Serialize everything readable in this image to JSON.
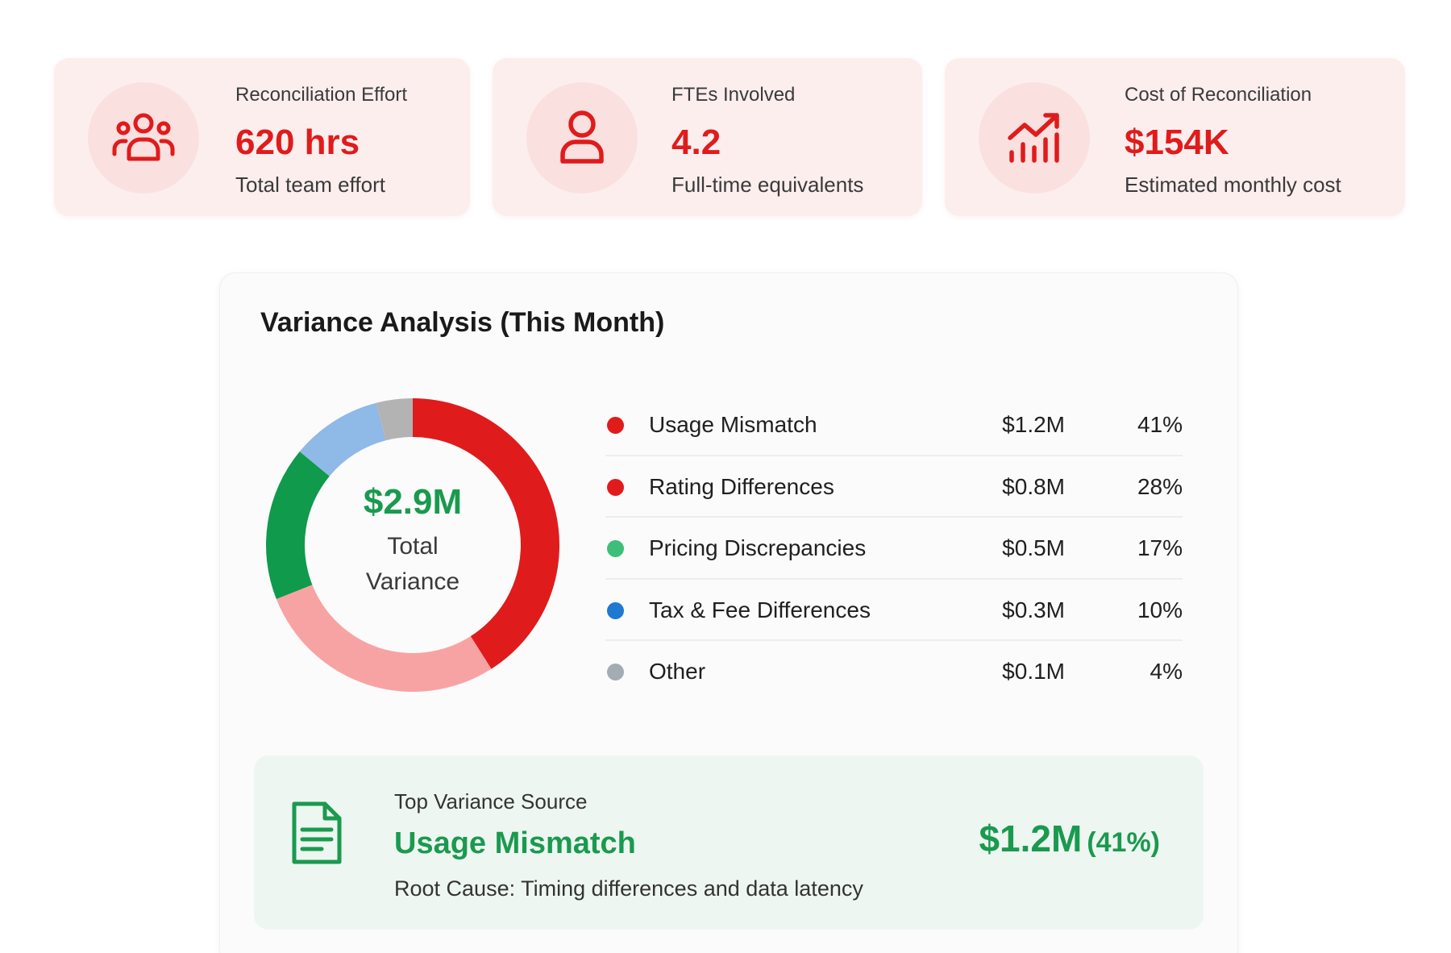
{
  "kpis": [
    {
      "label": "Reconciliation Effort",
      "value": "620 hrs",
      "sub": "Total team effort",
      "icon": "users-icon"
    },
    {
      "label": "FTEs Involved",
      "value": "4.2",
      "sub": "Full-time equivalents",
      "icon": "user-icon"
    },
    {
      "label": "Cost of Reconciliation",
      "value": "$154K",
      "sub": "Estimated monthly cost",
      "icon": "chart-trend-icon"
    }
  ],
  "colors": {
    "accent_red": "#e01b1b",
    "accent_green": "#1a9a4f",
    "card_bg": "#fdeeee",
    "source_bg": "#eef6f1"
  },
  "variance": {
    "title": "Variance Analysis (This Month)",
    "total_value": "$2.9M",
    "total_label": "Total Variance",
    "items": [
      {
        "name": "Usage Mismatch",
        "amount": "$1.2M",
        "pct": "41%",
        "dot_color": "#e01b1b"
      },
      {
        "name": "Rating Differences",
        "amount": "$0.8M",
        "pct": "28%",
        "dot_color": "#e01b1b"
      },
      {
        "name": "Pricing Discrepancies",
        "amount": "$0.5M",
        "pct": "17%",
        "dot_color": "#3dbf7a"
      },
      {
        "name": "Tax & Fee Differences",
        "amount": "$0.3M",
        "pct": "10%",
        "dot_color": "#1f78d1"
      },
      {
        "name": "Other",
        "amount": "$0.1M",
        "pct": "4%",
        "dot_color": "#a3abb3"
      }
    ]
  },
  "chart_data": {
    "type": "pie",
    "donut": true,
    "categories": [
      "Usage Mismatch",
      "Rating Differences",
      "Pricing Discrepancies",
      "Tax & Fee Differences",
      "Other"
    ],
    "values": [
      41,
      28,
      17,
      10,
      4
    ],
    "amounts": [
      "$1.2M",
      "$0.8M",
      "$0.5M",
      "$0.3M",
      "$0.1M"
    ],
    "slice_colors": [
      "#e01b1b",
      "#f8a3a3",
      "#0f9a4c",
      "#8fb9e6",
      "#b3b3b3"
    ],
    "center_value": "$2.9M",
    "center_label": "Total Variance",
    "title": "Variance Analysis (This Month)"
  },
  "top_source": {
    "label": "Top Variance Source",
    "name": "Usage Mismatch",
    "cause": "Root Cause: Timing differences and data latency",
    "amount": "$1.2M",
    "pct": "(41%)",
    "icon": "document-icon"
  }
}
